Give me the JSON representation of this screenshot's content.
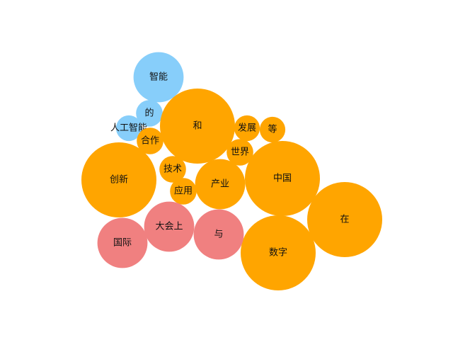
{
  "chart_data": {
    "type": "bubble",
    "title": "",
    "xlabel": "",
    "ylabel": "",
    "grid": false,
    "legend": false,
    "colors": {
      "blue": "#87CEFA",
      "orange": "#FFA500",
      "red": "#F08080"
    },
    "bubbles": [
      {
        "label": "智能",
        "value": 5,
        "color": "blue"
      },
      {
        "label": "的",
        "value": 1.4,
        "color": "blue"
      },
      {
        "label": "人工智能",
        "value": 1.3,
        "color": "blue"
      },
      {
        "label": "合作",
        "value": 1.4,
        "color": "orange"
      },
      {
        "label": "和",
        "value": 11.2,
        "color": "orange"
      },
      {
        "label": "发展",
        "value": 1.3,
        "color": "orange"
      },
      {
        "label": "等",
        "value": 1.3,
        "color": "orange"
      },
      {
        "label": "世界",
        "value": 1.4,
        "color": "orange"
      },
      {
        "label": "创新",
        "value": 11.2,
        "color": "orange"
      },
      {
        "label": "技术",
        "value": 1.4,
        "color": "orange"
      },
      {
        "label": "应用",
        "value": 1.4,
        "color": "orange"
      },
      {
        "label": "产业",
        "value": 5,
        "color": "orange"
      },
      {
        "label": "中国",
        "value": 11.2,
        "color": "orange"
      },
      {
        "label": "在",
        "value": 11.2,
        "color": "orange"
      },
      {
        "label": "数字",
        "value": 11.2,
        "color": "orange"
      },
      {
        "label": "国际",
        "value": 5,
        "color": "red"
      },
      {
        "label": "大会上",
        "value": 5,
        "color": "red"
      },
      {
        "label": "与",
        "value": 5,
        "color": "red"
      }
    ]
  }
}
